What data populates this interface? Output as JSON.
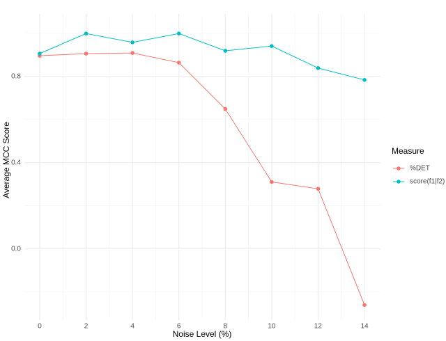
{
  "chart_data": {
    "type": "line",
    "x_label": "Noise Level (%)",
    "y_label": "Average MCC Score",
    "x": [
      0,
      2,
      4,
      6,
      8,
      10,
      12,
      14
    ],
    "series": [
      {
        "name": "%DET",
        "color": "#F8766D",
        "values": [
          0.896,
          0.906,
          0.909,
          0.864,
          0.649,
          0.311,
          0.279,
          -0.26
        ]
      },
      {
        "name": "score(f1|f2)",
        "color": "#00BFC4",
        "values": [
          0.906,
          0.999,
          0.958,
          0.999,
          0.919,
          0.941,
          0.839,
          0.784
        ]
      }
    ],
    "legend_title": "Measure",
    "legend_position": "right",
    "xlim": [
      -0.66,
      14.69
    ],
    "ylim": [
      -0.33,
      1.09
    ],
    "xticks": [
      0,
      2,
      4,
      6,
      8,
      10,
      12,
      14
    ],
    "yticks": [
      {
        "value": 0,
        "label": "0.0"
      },
      {
        "value": 0.4,
        "label": "0.4"
      },
      {
        "value": 0.8,
        "label": "0.8"
      }
    ],
    "x_minor_ticks": [
      1,
      3,
      5,
      7,
      9,
      11,
      13
    ],
    "y_minor_ticks": [
      -0.2,
      0.2,
      0.6,
      1.0
    ],
    "grid": true
  }
}
